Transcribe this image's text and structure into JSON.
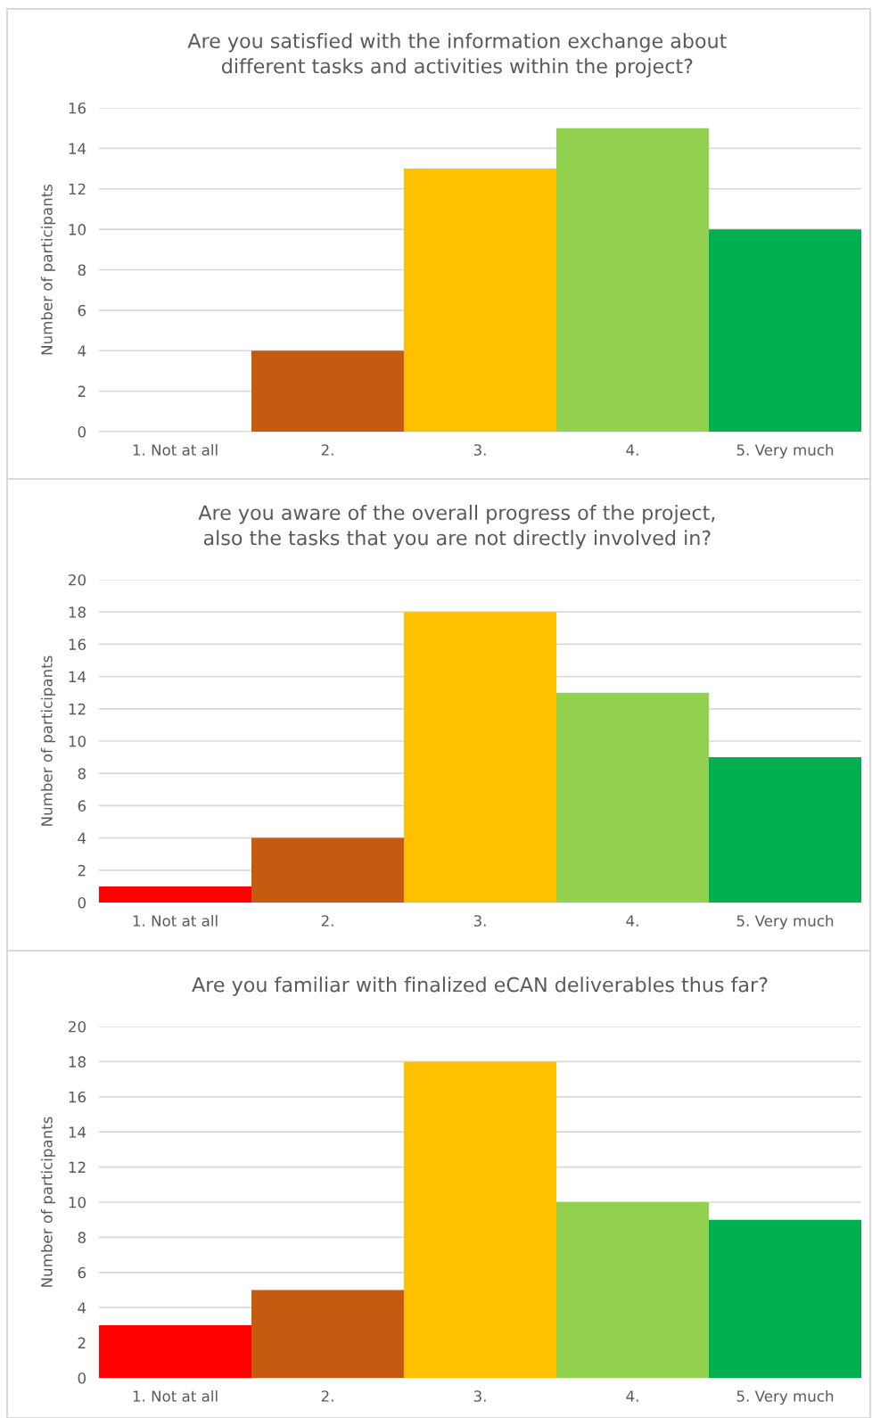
{
  "chart_data": [
    {
      "type": "bar",
      "title": "Are you satisfied with the information exchange about different tasks and activities within the project?",
      "ylabel": "Number of participants",
      "categories": [
        "1. Not at all",
        "2.",
        "3.",
        "4.",
        "5. Very much"
      ],
      "values": [
        0,
        4,
        13,
        15,
        10
      ],
      "colors": [
        "#ff0000",
        "#c55a11",
        "#ffc000",
        "#92d050",
        "#00b050"
      ],
      "ylim": [
        0,
        16
      ],
      "yticks": [
        0,
        2,
        4,
        6,
        8,
        10,
        12,
        14,
        16
      ],
      "grid": "y"
    },
    {
      "type": "bar",
      "title": "Are you aware of the overall progress of the project, also the tasks that you are not directly involved in?",
      "ylabel": "Number of participants",
      "categories": [
        "1. Not at all",
        "2.",
        "3.",
        "4.",
        "5. Very much"
      ],
      "values": [
        1,
        4,
        18,
        13,
        9
      ],
      "colors": [
        "#ff0000",
        "#c55a11",
        "#ffc000",
        "#92d050",
        "#00b050"
      ],
      "ylim": [
        0,
        20
      ],
      "yticks": [
        0,
        2,
        4,
        6,
        8,
        10,
        12,
        14,
        16,
        18,
        20
      ],
      "grid": "y"
    },
    {
      "type": "bar",
      "title": "Are you familiar with finalized eCAN deliverables thus far?",
      "ylabel": "Number of participants",
      "categories": [
        "1. Not at all",
        "2.",
        "3.",
        "4.",
        "5. Very much"
      ],
      "values": [
        3,
        5,
        18,
        10,
        9
      ],
      "colors": [
        "#ff0000",
        "#c55a11",
        "#ffc000",
        "#92d050",
        "#00b050"
      ],
      "ylim": [
        0,
        20
      ],
      "yticks": [
        0,
        2,
        4,
        6,
        8,
        10,
        12,
        14,
        16,
        18,
        20
      ],
      "grid": "y"
    }
  ]
}
